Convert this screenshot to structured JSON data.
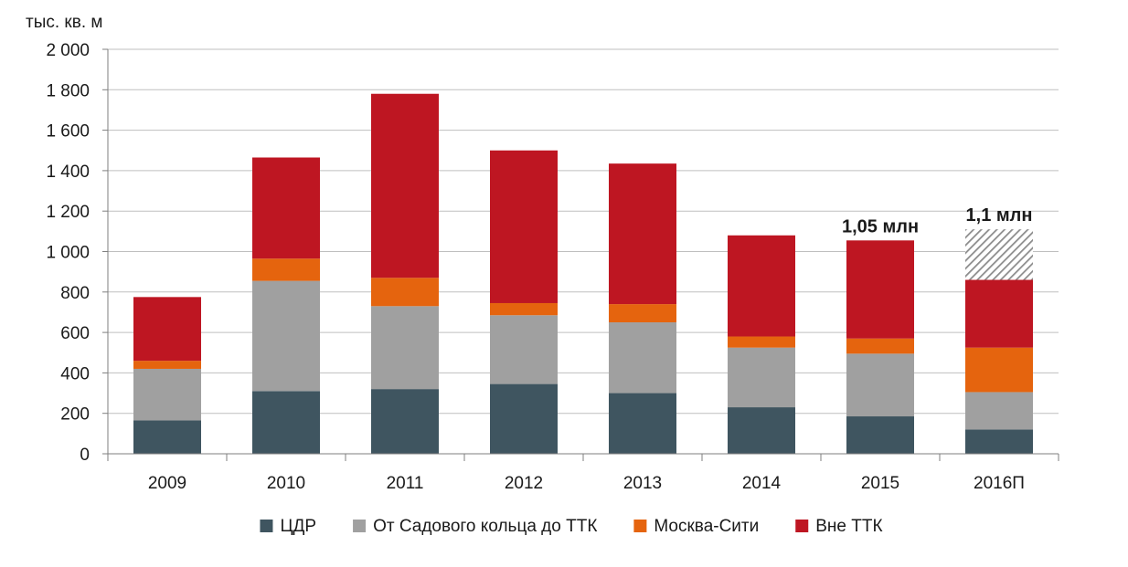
{
  "chart_data": {
    "type": "bar",
    "stacked": true,
    "ylabel": "тыс. кв. м",
    "ylim": [
      0,
      2000
    ],
    "yticks": [
      0,
      200,
      400,
      600,
      800,
      1000,
      1200,
      1400,
      1600,
      1800,
      2000
    ],
    "ytick_labels": [
      "0",
      "200",
      "400",
      "600",
      "800",
      "1 000",
      "1 200",
      "1 400",
      "1 600",
      "1 800",
      "2 000"
    ],
    "grid": true,
    "legend_position": "bottom",
    "categories": [
      "2009",
      "2010",
      "2011",
      "2012",
      "2013",
      "2014",
      "2015",
      "2016П"
    ],
    "series": [
      {
        "name": "ЦДР",
        "color": "#3f5560",
        "values": [
          165,
          310,
          320,
          345,
          300,
          230,
          185,
          120
        ]
      },
      {
        "name": "От Садового кольца до ТТК",
        "color": "#a0a0a0",
        "values": [
          255,
          545,
          410,
          340,
          350,
          295,
          310,
          185
        ]
      },
      {
        "name": "Москва-Сити",
        "color": "#e5640e",
        "values": [
          40,
          110,
          140,
          60,
          90,
          55,
          75,
          220
        ]
      },
      {
        "name": "Вне ТТК",
        "color": "#be1622",
        "values": [
          315,
          500,
          910,
          755,
          695,
          500,
          485,
          335
        ]
      }
    ],
    "forecast_extra": {
      "category": "2016П",
      "value": 250,
      "pattern": "hatched"
    },
    "annotations": [
      {
        "category": "2015",
        "text": "1,05 млн"
      },
      {
        "category": "2016П",
        "text": "1,1 млн"
      }
    ]
  }
}
